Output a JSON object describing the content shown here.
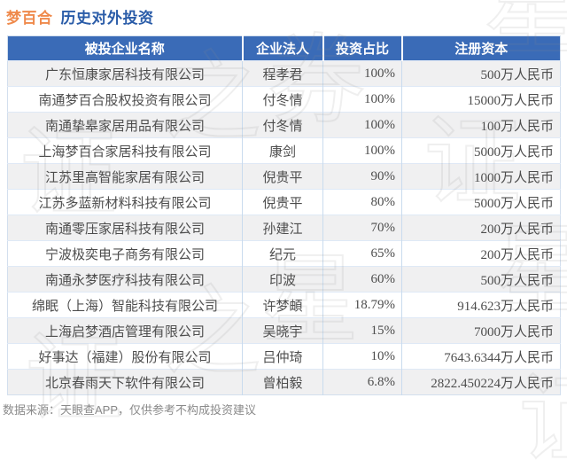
{
  "title": {
    "stock": "梦百合",
    "rest": "历史对外投资"
  },
  "table": {
    "headers": [
      "被投企业名称",
      "企业法人",
      "投资占比",
      "注册资本"
    ],
    "rows": [
      [
        "广东恒康家居科技有限公司",
        "程孝君",
        "100%",
        "500万人民币"
      ],
      [
        "南通梦百合股权投资有限公司",
        "付冬情",
        "100%",
        "15000万人民币"
      ],
      [
        "南通挚皋家居用品有限公司",
        "付冬情",
        "100%",
        "100万人民币"
      ],
      [
        "上海梦百合家居科技有限公司",
        "康剑",
        "100%",
        "5000万人民币"
      ],
      [
        "江苏里高智能家居有限公司",
        "倪贵平",
        "90%",
        "1000万人民币"
      ],
      [
        "江苏多蓝新材料科技有限公司",
        "倪贵平",
        "80%",
        "5000万人民币"
      ],
      [
        "南通零压家居科技有限公司",
        "孙建江",
        "70%",
        "200万人民币"
      ],
      [
        "宁波极奕电子商务有限公司",
        "纪元",
        "65%",
        "200万人民币"
      ],
      [
        "南通永梦医疗科技有限公司",
        "印波",
        "60%",
        "500万人民币"
      ],
      [
        "绵眠（上海）智能科技有限公司",
        "许梦頔",
        "18.79%",
        "914.623万人民币"
      ],
      [
        "上海启梦酒店管理有限公司",
        "吴晓宇",
        "15%",
        "7000万人民币"
      ],
      [
        "好事达（福建）股份有限公司",
        "吕仲琦",
        "10%",
        "7643.6344万人民币"
      ],
      [
        "北京春雨天下软件有限公司",
        "曾柏毅",
        "6.8%",
        "2822.450224万人民币"
      ]
    ]
  },
  "footer": {
    "text": "数据来源：天眼查APP，仅供参考不构成投资建议"
  },
  "watermark": {
    "chars": [
      "星",
      "之",
      "券",
      "证",
      "证",
      "星",
      "星",
      "之",
      "证",
      "证"
    ]
  },
  "colors": {
    "title_stock": "#EF8A4C",
    "title_text": "#2A5CA8",
    "header_bg": "#3A6BB7",
    "header_text": "#FFFFFF",
    "row_alt_bg": "#F0F0F1",
    "row_bg": "#FFFFFF",
    "border_vertical": "#C9DBEE",
    "border_horizontal": "#DFE9F6",
    "body_text": "#4D4D4D",
    "footer_text": "#8A8A8A"
  },
  "chart_data": {
    "type": "table",
    "title": "梦百合 历史对外投资",
    "columns": [
      "被投企业名称",
      "企业法人",
      "投资占比",
      "注册资本"
    ],
    "rows": [
      [
        "广东恒康家居科技有限公司",
        "程孝君",
        "100%",
        "500万人民币"
      ],
      [
        "南通梦百合股权投资有限公司",
        "付冬情",
        "100%",
        "15000万人民币"
      ],
      [
        "南通挚皋家居用品有限公司",
        "付冬情",
        "100%",
        "100万人民币"
      ],
      [
        "上海梦百合家居科技有限公司",
        "康剑",
        "100%",
        "5000万人民币"
      ],
      [
        "江苏里高智能家居有限公司",
        "倪贵平",
        "90%",
        "1000万人民币"
      ],
      [
        "江苏多蓝新材料科技有限公司",
        "倪贵平",
        "80%",
        "5000万人民币"
      ],
      [
        "南通零压家居科技有限公司",
        "孙建江",
        "70%",
        "200万人民币"
      ],
      [
        "宁波极奕电子商务有限公司",
        "纪元",
        "65%",
        "200万人民币"
      ],
      [
        "南通永梦医疗科技有限公司",
        "印波",
        "60%",
        "500万人民币"
      ],
      [
        "绵眠（上海）智能科技有限公司",
        "许梦頔",
        "18.79%",
        "914.623万人民币"
      ],
      [
        "上海启梦酒店管理有限公司",
        "吴晓宇",
        "15%",
        "7000万人民币"
      ],
      [
        "好事达（福建）股份有限公司",
        "吕仲琦",
        "10%",
        "7643.6344万人民币"
      ],
      [
        "北京春雨天下软件有限公司",
        "曾柏毅",
        "6.8%",
        "2822.450224万人民币"
      ]
    ],
    "source_note": "数据来源：天眼查APP，仅供参考不构成投资建议"
  }
}
